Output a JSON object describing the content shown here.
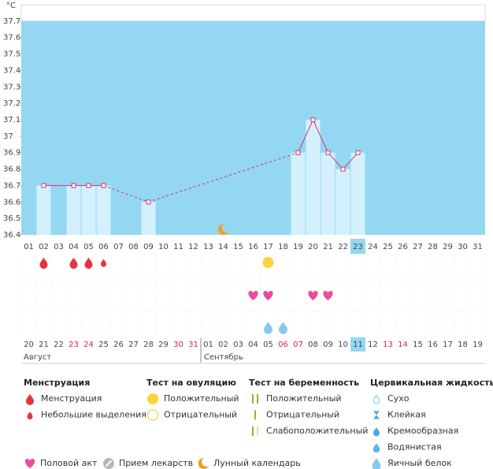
{
  "chart_data": {
    "type": "line",
    "unit": "°C",
    "categories": [
      "01",
      "02",
      "03",
      "04",
      "05",
      "06",
      "07",
      "08",
      "09",
      "10",
      "11",
      "12",
      "13",
      "14",
      "15",
      "16",
      "17",
      "18",
      "19",
      "20",
      "21",
      "22",
      "23",
      "24",
      "25",
      "26",
      "27",
      "28",
      "29",
      "30",
      "31"
    ],
    "values": [
      null,
      36.7,
      null,
      36.7,
      36.7,
      36.7,
      null,
      null,
      36.6,
      null,
      null,
      null,
      null,
      null,
      null,
      null,
      null,
      null,
      36.9,
      37.1,
      36.9,
      36.8,
      36.9,
      null,
      null,
      null,
      null,
      null,
      null,
      null,
      null
    ],
    "ylim": [
      36.4,
      37.8
    ],
    "yticks": [
      36.4,
      36.5,
      36.6,
      36.7,
      36.8,
      36.9,
      37,
      37.1,
      37.2,
      37.3,
      37.4,
      37.5,
      37.6,
      37.7
    ],
    "background_color": "#93d7f3",
    "bar_color": "#d4f0fc",
    "line_color": "#d9336b",
    "selected_day": "23",
    "markers": [
      {
        "day": "14",
        "icon": "moon"
      }
    ],
    "rows": [
      [
        {
          "day": "02",
          "icon": "drop-red"
        },
        {
          "day": "04",
          "icon": "drop-red"
        },
        {
          "day": "05",
          "icon": "drop-red"
        },
        {
          "day": "06",
          "icon": "drop-red-small"
        },
        {
          "day": "17",
          "icon": "circle-yellow"
        }
      ],
      [
        {
          "day": "16",
          "icon": "heart"
        },
        {
          "day": "17",
          "icon": "heart"
        },
        {
          "day": "20",
          "icon": "heart"
        },
        {
          "day": "21",
          "icon": "heart"
        }
      ],
      [
        {
          "day": "17",
          "icon": "fluid-eggwhite"
        },
        {
          "day": "18",
          "icon": "fluid-eggwhite"
        }
      ]
    ],
    "months": [
      {
        "name": "Август",
        "days": [
          {
            "label": "20"
          },
          {
            "label": "21"
          },
          {
            "label": "22"
          },
          {
            "label": "23",
            "weekend": true
          },
          {
            "label": "24",
            "weekend": true
          },
          {
            "label": "25"
          },
          {
            "label": "26"
          },
          {
            "label": "27"
          },
          {
            "label": "28"
          },
          {
            "label": "29"
          },
          {
            "label": "30",
            "weekend": true
          },
          {
            "label": "31",
            "weekend": true
          }
        ]
      },
      {
        "name": "Сентябрь",
        "days": [
          {
            "label": "01"
          },
          {
            "label": "02"
          },
          {
            "label": "03"
          },
          {
            "label": "04"
          },
          {
            "label": "05"
          },
          {
            "label": "06",
            "weekend": true
          },
          {
            "label": "07",
            "weekend": true
          },
          {
            "label": "08"
          },
          {
            "label": "09"
          },
          {
            "label": "10"
          },
          {
            "label": "11"
          },
          {
            "label": "12"
          },
          {
            "label": "13",
            "weekend": true
          },
          {
            "label": "14",
            "weekend": true
          },
          {
            "label": "15"
          },
          {
            "label": "16"
          },
          {
            "label": "17"
          },
          {
            "label": "18"
          },
          {
            "label": "19"
          }
        ]
      }
    ]
  },
  "legend": {
    "groups": [
      {
        "title": "Менструация",
        "items": [
          {
            "label": "Менструация",
            "icon": "drop-red"
          },
          {
            "label": "Небольшие выделения",
            "icon": "drop-red-small"
          }
        ]
      },
      {
        "title": "Тест на овуляцию",
        "items": [
          {
            "label": "Положительный",
            "icon": "circle-yellow"
          },
          {
            "label": "Отрицательный",
            "icon": "circle-empty"
          }
        ]
      },
      {
        "title": "Тест на беременность",
        "items": [
          {
            "label": "Положительный",
            "icon": "test-positive"
          },
          {
            "label": "Отрицательный",
            "icon": "test-negative"
          },
          {
            "label": "Слабоположительный",
            "icon": "test-weak"
          }
        ]
      },
      {
        "title": "Цервикальная жидкость",
        "items": [
          {
            "label": "Сухо",
            "icon": "fluid-dry"
          },
          {
            "label": "Клейкая",
            "icon": "fluid-sticky"
          },
          {
            "label": "Кремообразная",
            "icon": "fluid-creamy"
          },
          {
            "label": "Водянистая",
            "icon": "fluid-watery"
          },
          {
            "label": "Яичный белок",
            "icon": "fluid-eggwhite"
          }
        ]
      }
    ],
    "extra": [
      {
        "label": "Половой акт",
        "icon": "heart"
      },
      {
        "label": "Прием лекарств",
        "icon": "pill"
      },
      {
        "label": "Лунный календарь",
        "icon": "moon"
      }
    ]
  }
}
